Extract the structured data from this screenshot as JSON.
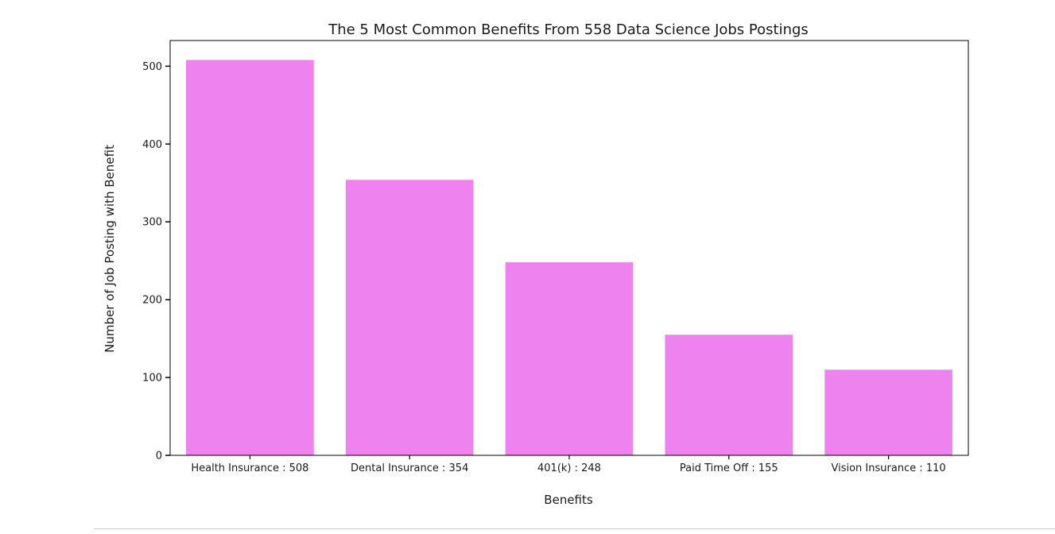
{
  "chart_data": {
    "type": "bar",
    "title": "The 5 Most Common Benefits From 558 Data Science Jobs Postings",
    "xlabel": "Benefits",
    "ylabel": "Number of Job Posting with Benefit",
    "categories": [
      "Health Insurance : 508",
      "Dental Insurance : 354",
      "401(k) : 248",
      "Paid Time Off : 155",
      "Vision Insurance : 110"
    ],
    "values": [
      508,
      354,
      248,
      155,
      110
    ],
    "ylim": [
      0,
      533
    ],
    "yticks": [
      0,
      100,
      200,
      300,
      400,
      500
    ],
    "bar_color": "#ee82ee",
    "grid": false,
    "legend": "none"
  }
}
